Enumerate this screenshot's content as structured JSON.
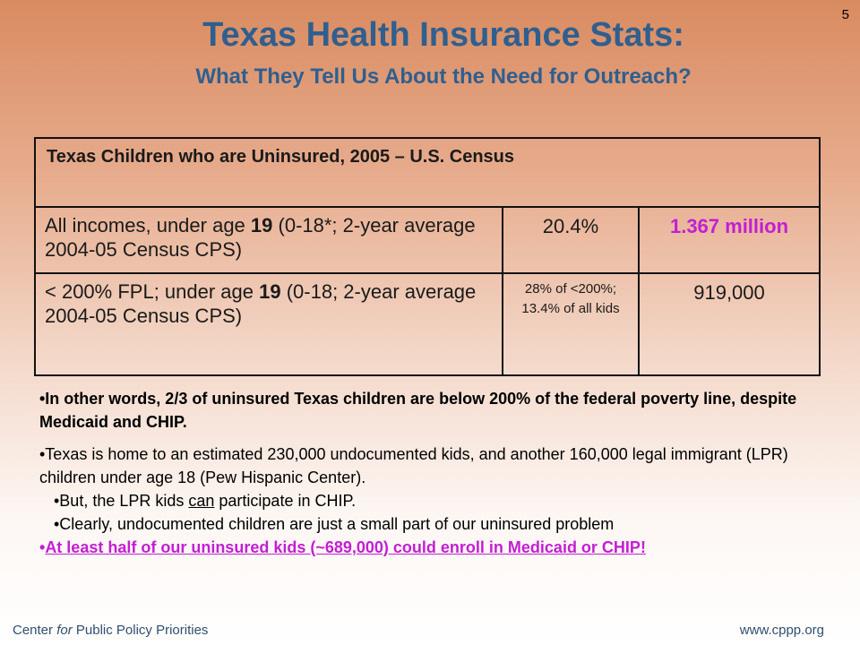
{
  "slide_number": "5",
  "title": "Texas Health Insurance Stats:",
  "subtitle": "What They Tell Us About the Need for Outreach?",
  "table": {
    "header": "Texas Children who are Uninsured, 2005 – U.S.  Census",
    "rows": [
      {
        "desc_pre": "All incomes, under age ",
        "desc_age": "19",
        "desc_post": " (0-18*; 2-year average 2004-05 Census CPS)",
        "pct": "20.4%",
        "count": "1.367 million"
      },
      {
        "desc_pre": "< 200% FPL; under age ",
        "desc_age": "19",
        "desc_post": " (0-18; 2-year average 2004-05 Census CPS)",
        "pct": "28% of <200%; 13.4% of all kids",
        "count": "919,000"
      }
    ]
  },
  "bullets": {
    "b1": "•In other words, 2/3 of uninsured Texas children are below 200% of the federal poverty line, despite Medicaid and CHIP.",
    "b2": "•Texas is home to an estimated 230,000 undocumented kids, and another 160,000 legal immigrant (LPR) children under age 18 (Pew Hispanic Center).",
    "b3_pre": "•But, the LPR kids ",
    "b3_u": "can",
    "b3_post": " participate in CHIP.",
    "b4": "•Clearly, undocumented children are just a small part of our uninsured problem",
    "b5_bullet": "•",
    "b5_link": "At least half of our uninsured kids (~689,000) could enroll in Medicaid or CHIP!"
  },
  "footer": {
    "left_pre": "Center ",
    "left_italic": "for",
    "left_post": " Public Policy Priorities",
    "right": "www.cppp.org"
  },
  "colors": {
    "title": "#2f5f8f",
    "highlight": "#c21fd3"
  }
}
